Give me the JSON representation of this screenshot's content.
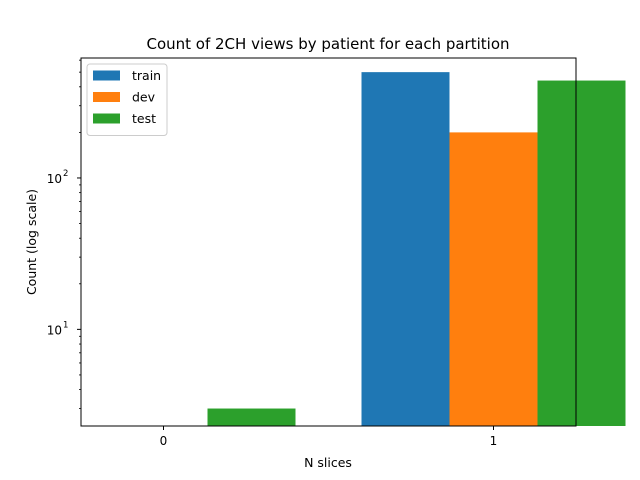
{
  "chart_data": {
    "type": "bar",
    "title": "Count of 2CH views by patient for each partition",
    "xlabel": "N slices",
    "ylabel": "Count (log scale)",
    "categories": [
      "0",
      "1"
    ],
    "y_scale": "log",
    "ylim": [
      2.3,
      620
    ],
    "y_ticks": [
      {
        "value": 10,
        "base": "10",
        "exp": "1"
      },
      {
        "value": 100,
        "base": "10",
        "exp": "2"
      }
    ],
    "legend_position": "upper left",
    "grid": false,
    "series": [
      {
        "name": "train",
        "color": "#1f77b4",
        "values": [
          0,
          500
        ]
      },
      {
        "name": "dev",
        "color": "#ff7f0e",
        "values": [
          0,
          200
        ]
      },
      {
        "name": "test",
        "color": "#2ca02c",
        "values": [
          3,
          440
        ]
      }
    ]
  }
}
